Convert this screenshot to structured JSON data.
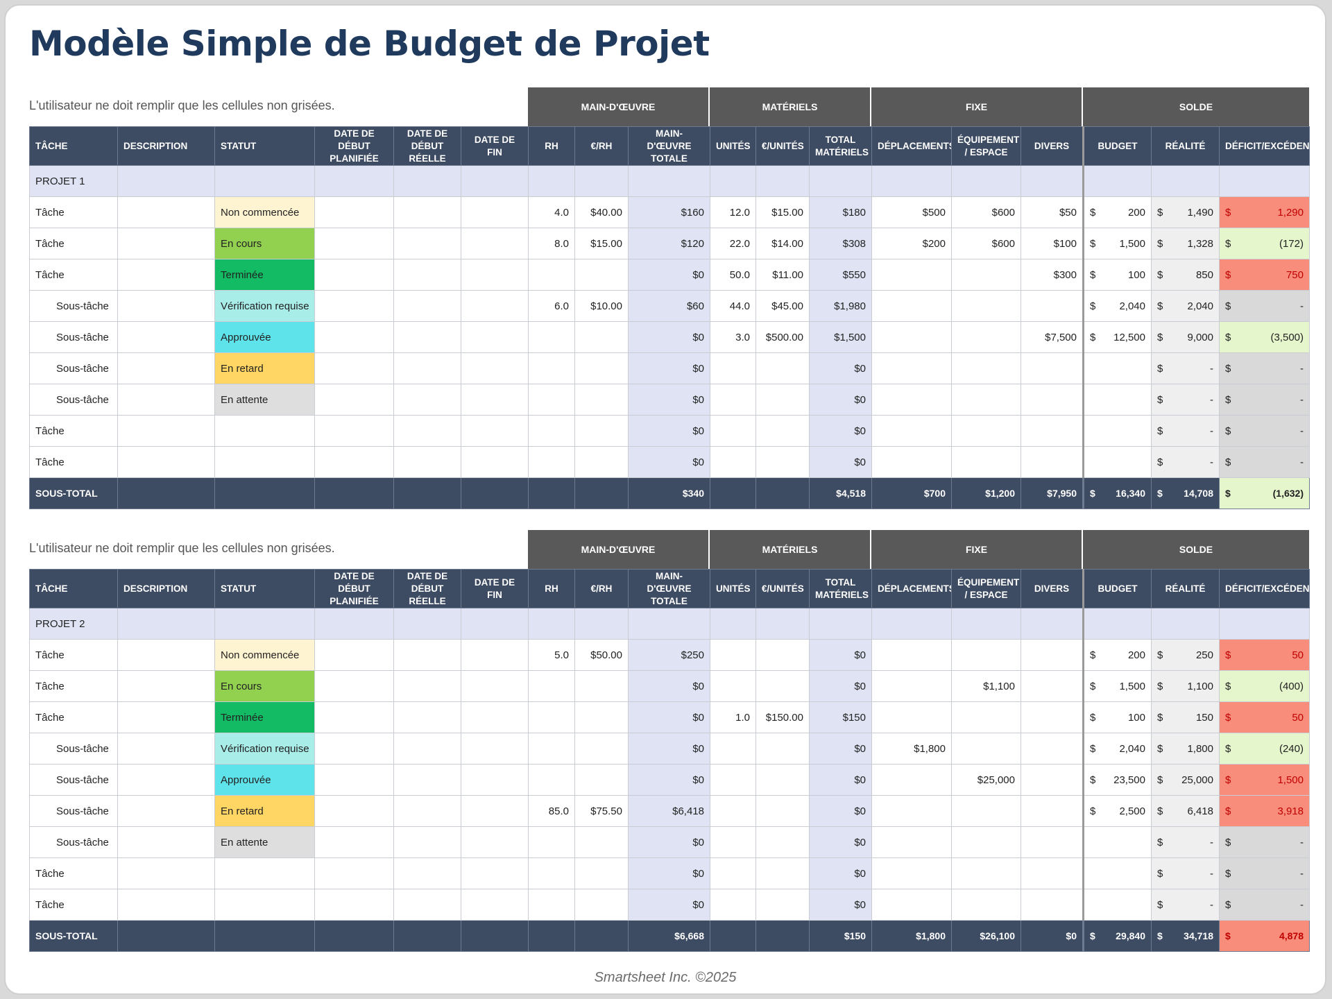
{
  "title": "Modèle Simple de Budget de Projet",
  "footer": "Smartsheet Inc. ©2025",
  "note": "L'utilisateur ne doit remplir que les cellules non grisées.",
  "groups": {
    "labor": "MAIN-D'ŒUVRE",
    "materials": "MATÉRIELS",
    "fixed": "FIXE",
    "balance": "SOLDE"
  },
  "headers": {
    "task": "TÂCHE",
    "description": "DESCRIPTION",
    "status": "STATUT",
    "planned_start": "DATE DE DÉBUT PLANIFIÉE",
    "actual_start": "DATE DE DÉBUT RÉELLE",
    "end_date": "DATE DE FIN",
    "hours": "RH",
    "rate": "€/RH",
    "labor_total": "MAIN-D'ŒUVRE TOTALE",
    "units": "UNITÉS",
    "unit_price": "€/UNITÉS",
    "materials_total": "TOTAL MATÉRIELS",
    "travel": "DÉPLACEMENTS",
    "equipment": "ÉQUIPEMENT / ESPACE",
    "misc": "DIVERS",
    "budget": "BUDGET",
    "actual": "RÉALITÉ",
    "variance": "DÉFICIT/EXCÉDENT"
  },
  "currency": "$",
  "colors": {
    "header_bg": "#3d4b63",
    "group_bg": "#595959",
    "calc_bg": "#dfe3f3",
    "over_budget": "#f88d7c",
    "under_budget": "#e5f5cc",
    "title": "#1f3a5c"
  },
  "projects": [
    {
      "name": "PROJET 1",
      "rows": [
        {
          "task": "Tâche",
          "level": 1,
          "status": "Non commencée",
          "st": "nc",
          "hours": "4.0",
          "rate": "$40.00",
          "labor": "$160",
          "units": "12.0",
          "unit_price": "$15.00",
          "mat": "$180",
          "travel": "$500",
          "equip": "$600",
          "misc": "$50",
          "budget": "200",
          "actual": "1,490",
          "variance": "1,290",
          "vtype": "over"
        },
        {
          "task": "Tâche",
          "level": 1,
          "status": "En cours",
          "st": "ec",
          "hours": "8.0",
          "rate": "$15.00",
          "labor": "$120",
          "units": "22.0",
          "unit_price": "$14.00",
          "mat": "$308",
          "travel": "$200",
          "equip": "$600",
          "misc": "$100",
          "budget": "1,500",
          "actual": "1,328",
          "variance": "(172)",
          "vtype": "under"
        },
        {
          "task": "Tâche",
          "level": 1,
          "status": "Terminée",
          "st": "te",
          "hours": "",
          "rate": "",
          "labor": "$0",
          "units": "50.0",
          "unit_price": "$11.00",
          "mat": "$550",
          "travel": "",
          "equip": "",
          "misc": "$300",
          "budget": "100",
          "actual": "850",
          "variance": "750",
          "vtype": "over"
        },
        {
          "task": "Sous-tâche",
          "level": 2,
          "status": "Vérification requise",
          "st": "vr",
          "hours": "6.0",
          "rate": "$10.00",
          "labor": "$60",
          "units": "44.0",
          "unit_price": "$45.00",
          "mat": "$1,980",
          "travel": "",
          "equip": "",
          "misc": "",
          "budget": "2,040",
          "actual": "2,040",
          "variance": "-",
          "vtype": "zero"
        },
        {
          "task": "Sous-tâche",
          "level": 2,
          "status": "Approuvée",
          "st": "ap",
          "hours": "",
          "rate": "",
          "labor": "$0",
          "units": "3.0",
          "unit_price": "$500.00",
          "mat": "$1,500",
          "travel": "",
          "equip": "",
          "misc": "$7,500",
          "budget": "12,500",
          "actual": "9,000",
          "variance": "(3,500)",
          "vtype": "under"
        },
        {
          "task": "Sous-tâche",
          "level": 2,
          "status": "En retard",
          "st": "er",
          "hours": "",
          "rate": "",
          "labor": "$0",
          "units": "",
          "unit_price": "",
          "mat": "$0",
          "travel": "",
          "equip": "",
          "misc": "",
          "budget": "",
          "actual": "-",
          "variance": "-",
          "vtype": "zero"
        },
        {
          "task": "Sous-tâche",
          "level": 2,
          "status": "En attente",
          "st": "ea",
          "hours": "",
          "rate": "",
          "labor": "$0",
          "units": "",
          "unit_price": "",
          "mat": "$0",
          "travel": "",
          "equip": "",
          "misc": "",
          "budget": "",
          "actual": "-",
          "variance": "-",
          "vtype": "zero"
        },
        {
          "task": "Tâche",
          "level": 1,
          "status": "",
          "st": "",
          "hours": "",
          "rate": "",
          "labor": "$0",
          "units": "",
          "unit_price": "",
          "mat": "$0",
          "travel": "",
          "equip": "",
          "misc": "",
          "budget": "",
          "actual": "-",
          "variance": "-",
          "vtype": "zero"
        },
        {
          "task": "Tâche",
          "level": 1,
          "status": "",
          "st": "",
          "hours": "",
          "rate": "",
          "labor": "$0",
          "units": "",
          "unit_price": "",
          "mat": "$0",
          "travel": "",
          "equip": "",
          "misc": "",
          "budget": "",
          "actual": "-",
          "variance": "-",
          "vtype": "zero"
        }
      ],
      "subtotal": {
        "label": "SOUS-TOTAL",
        "labor": "$340",
        "mat": "$4,518",
        "travel": "$700",
        "equip": "$1,200",
        "misc": "$7,950",
        "budget": "16,340",
        "actual": "14,708",
        "variance": "(1,632)",
        "vtype": "under"
      }
    },
    {
      "name": "PROJET 2",
      "rows": [
        {
          "task": "Tâche",
          "level": 1,
          "status": "Non commencée",
          "st": "nc",
          "hours": "5.0",
          "rate": "$50.00",
          "labor": "$250",
          "units": "",
          "unit_price": "",
          "mat": "$0",
          "travel": "",
          "equip": "",
          "misc": "",
          "budget": "200",
          "actual": "250",
          "variance": "50",
          "vtype": "over"
        },
        {
          "task": "Tâche",
          "level": 1,
          "status": "En cours",
          "st": "ec",
          "hours": "",
          "rate": "",
          "labor": "$0",
          "units": "",
          "unit_price": "",
          "mat": "$0",
          "travel": "",
          "equip": "$1,100",
          "misc": "",
          "budget": "1,500",
          "actual": "1,100",
          "variance": "(400)",
          "vtype": "under"
        },
        {
          "task": "Tâche",
          "level": 1,
          "status": "Terminée",
          "st": "te",
          "hours": "",
          "rate": "",
          "labor": "$0",
          "units": "1.0",
          "unit_price": "$150.00",
          "mat": "$150",
          "travel": "",
          "equip": "",
          "misc": "",
          "budget": "100",
          "actual": "150",
          "variance": "50",
          "vtype": "over"
        },
        {
          "task": "Sous-tâche",
          "level": 2,
          "status": "Vérification requise",
          "st": "vr",
          "hours": "",
          "rate": "",
          "labor": "$0",
          "units": "",
          "unit_price": "",
          "mat": "$0",
          "travel": "$1,800",
          "equip": "",
          "misc": "",
          "budget": "2,040",
          "actual": "1,800",
          "variance": "(240)",
          "vtype": "under"
        },
        {
          "task": "Sous-tâche",
          "level": 2,
          "status": "Approuvée",
          "st": "ap",
          "hours": "",
          "rate": "",
          "labor": "$0",
          "units": "",
          "unit_price": "",
          "mat": "$0",
          "travel": "",
          "equip": "$25,000",
          "misc": "",
          "budget": "23,500",
          "actual": "25,000",
          "variance": "1,500",
          "vtype": "over"
        },
        {
          "task": "Sous-tâche",
          "level": 2,
          "status": "En retard",
          "st": "er",
          "hours": "85.0",
          "rate": "$75.50",
          "labor": "$6,418",
          "units": "",
          "unit_price": "",
          "mat": "$0",
          "travel": "",
          "equip": "",
          "misc": "",
          "budget": "2,500",
          "actual": "6,418",
          "variance": "3,918",
          "vtype": "over"
        },
        {
          "task": "Sous-tâche",
          "level": 2,
          "status": "En attente",
          "st": "ea",
          "hours": "",
          "rate": "",
          "labor": "$0",
          "units": "",
          "unit_price": "",
          "mat": "$0",
          "travel": "",
          "equip": "",
          "misc": "",
          "budget": "",
          "actual": "-",
          "variance": "-",
          "vtype": "zero"
        },
        {
          "task": "Tâche",
          "level": 1,
          "status": "",
          "st": "",
          "hours": "",
          "rate": "",
          "labor": "$0",
          "units": "",
          "unit_price": "",
          "mat": "$0",
          "travel": "",
          "equip": "",
          "misc": "",
          "budget": "",
          "actual": "-",
          "variance": "-",
          "vtype": "zero"
        },
        {
          "task": "Tâche",
          "level": 1,
          "status": "",
          "st": "",
          "hours": "",
          "rate": "",
          "labor": "$0",
          "units": "",
          "unit_price": "",
          "mat": "$0",
          "travel": "",
          "equip": "",
          "misc": "",
          "budget": "",
          "actual": "-",
          "variance": "-",
          "vtype": "zero"
        }
      ],
      "subtotal": {
        "label": "SOUS-TOTAL",
        "labor": "$6,668",
        "mat": "$150",
        "travel": "$1,800",
        "equip": "$26,100",
        "misc": "$0",
        "budget": "29,840",
        "actual": "34,718",
        "variance": "4,878",
        "vtype": "over"
      }
    }
  ]
}
